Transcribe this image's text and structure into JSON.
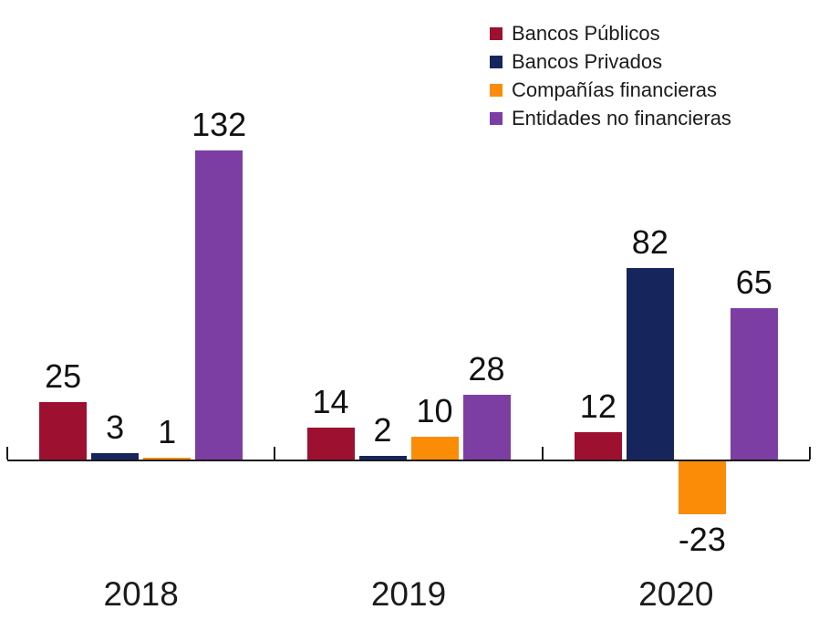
{
  "chart_data": {
    "type": "bar",
    "categories": [
      "2018",
      "2019",
      "2020"
    ],
    "series": [
      {
        "name": "Bancos Públicos",
        "color": "#9e1030",
        "values": [
          25,
          14,
          12
        ]
      },
      {
        "name": "Bancos Privados",
        "color": "#16265c",
        "values": [
          3,
          2,
          82
        ]
      },
      {
        "name": "Compañías financieras",
        "color": "#fb8c07",
        "values": [
          1,
          10,
          -23
        ]
      },
      {
        "name": "Entidades no financieras",
        "color": "#7c3ea3",
        "values": [
          132,
          28,
          65
        ]
      }
    ],
    "title": "",
    "xlabel": "",
    "ylabel": "",
    "ylim": [
      -23,
      132
    ],
    "grid": false,
    "legend_position": "top-right",
    "data_labels": true,
    "axis_color": "#1a1a1a",
    "label_color": "#111111"
  }
}
